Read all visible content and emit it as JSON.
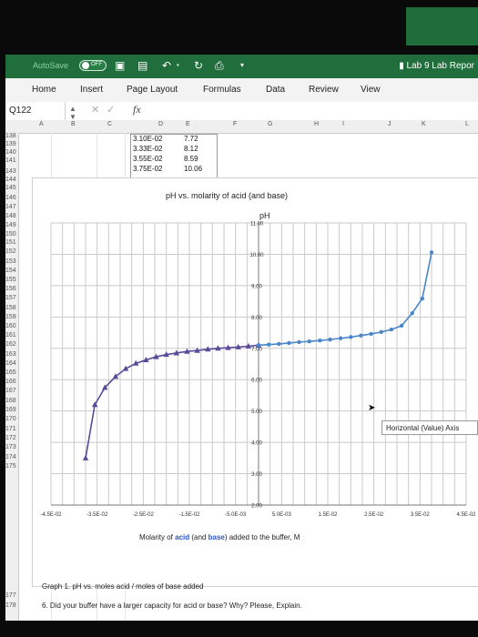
{
  "titlebar": {
    "autosave_label": "AutoSave",
    "autosave_state": "OFF",
    "document_title": "Lab 9  Lab Repor"
  },
  "ribbon": {
    "tabs": [
      "Home",
      "Insert",
      "Page Layout",
      "Formulas",
      "Data",
      "Review",
      "View"
    ]
  },
  "formula_bar": {
    "name_box": "Q122"
  },
  "columns": [
    "A",
    "B",
    "C",
    "D",
    "E",
    "F",
    "G",
    "H",
    "I",
    "J",
    "K",
    "L"
  ],
  "rows": [
    "138",
    "139",
    "140",
    "141",
    "143",
    "144",
    "145",
    "146",
    "147",
    "148",
    "149",
    "150",
    "151",
    "152",
    "153",
    "154",
    "155",
    "156",
    "157",
    "158",
    "159",
    "160",
    "161",
    "162",
    "163",
    "164",
    "165",
    "166",
    "167",
    "168",
    "169",
    "170",
    "171",
    "172",
    "173",
    "174",
    "175",
    "177",
    "178"
  ],
  "table": [
    [
      "3.10E-02",
      "7.72"
    ],
    [
      "3.33E-02",
      "8.12"
    ],
    [
      "3.55E-02",
      "8.59"
    ],
    [
      "3.75E-02",
      "10.06"
    ]
  ],
  "chart_data": {
    "type": "scatter",
    "title": "pH vs. molarity of acid (and base)",
    "ylabel": "pH",
    "xlabel_parts": [
      "Molarity of ",
      "acid",
      " (and ",
      "base",
      ") added to the buffer, M"
    ],
    "xlim": [
      -0.045,
      0.045
    ],
    "ylim": [
      2.0,
      11.0
    ],
    "x_tick_labels": [
      "-4.5E-02",
      "-3.5E-02",
      "-2.5E-02",
      "-1.5E-02",
      "-5.0E-03",
      "5.0E-03",
      "1.5E-02",
      "2.5E-02",
      "3.5E-02",
      "4.5E-02"
    ],
    "y_tick_labels": [
      "2.00",
      "3.00",
      "4.00",
      "5.00",
      "6.00",
      "7.00",
      "8.00",
      "9.00",
      "10.00",
      "11.00"
    ],
    "grid": true,
    "series": [
      {
        "name": "acid",
        "color": "#5a4a9a",
        "marker": "triangle",
        "x": [
          -0.0375,
          -0.0355,
          -0.0333,
          -0.031,
          -0.0288,
          -0.0266,
          -0.0244,
          -0.0222,
          -0.02,
          -0.0178,
          -0.0155,
          -0.0133,
          -0.011,
          -0.0088,
          -0.0066,
          -0.0044,
          -0.0022,
          0.0
        ],
        "y": [
          3.5,
          5.2,
          5.75,
          6.1,
          6.35,
          6.52,
          6.63,
          6.73,
          6.8,
          6.85,
          6.9,
          6.93,
          6.97,
          7.0,
          7.02,
          7.04,
          7.07,
          7.1
        ]
      },
      {
        "name": "base",
        "color": "#4a86c8",
        "marker": "circle",
        "x": [
          0.0,
          0.0022,
          0.0044,
          0.0066,
          0.0088,
          0.011,
          0.0133,
          0.0155,
          0.0178,
          0.02,
          0.0222,
          0.0244,
          0.0266,
          0.0288,
          0.031,
          0.0333,
          0.0355,
          0.0375
        ],
        "y": [
          7.1,
          7.12,
          7.14,
          7.17,
          7.2,
          7.22,
          7.25,
          7.28,
          7.32,
          7.36,
          7.41,
          7.46,
          7.52,
          7.6,
          7.72,
          8.12,
          8.59,
          10.06
        ]
      }
    ]
  },
  "tooltip": "Horizontal (Value) Axis",
  "sheet": {
    "caption": "Graph 1. pH vs. moles acid / moles of base added",
    "question": "6. Did your buffer have a larger capacity for acid or base? Why? Please, Explain."
  }
}
